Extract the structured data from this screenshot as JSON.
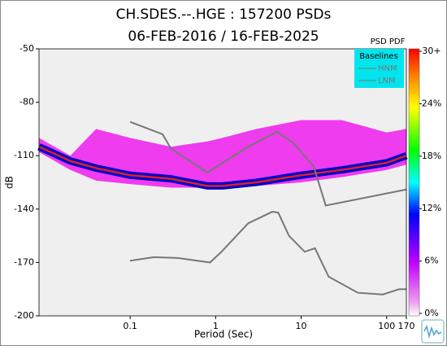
{
  "chart_data": {
    "type": "psd_pdf",
    "title": "CH.SDES.--.HGE : 157200 PSDs",
    "subtitle": "06-FEB-2016 / 16-FEB-2025",
    "x_label": "Period (Sec)",
    "y_label": "dB",
    "xscale": "log",
    "xlim": [
      0.0086,
      170
    ],
    "ylim": [
      -200,
      -50
    ],
    "xticks": [
      0.1,
      1,
      10,
      100,
      170
    ],
    "yticks": [
      -50,
      -80,
      -110,
      -140,
      -170,
      -200
    ],
    "colorbar_title": "PSD PDF",
    "clim": [
      0,
      30
    ],
    "cticks": [
      {
        "value": 0,
        "label": "0%"
      },
      {
        "value": 6,
        "label": "6%"
      },
      {
        "value": 12,
        "label": "12%"
      },
      {
        "value": 18,
        "label": "18%"
      },
      {
        "value": 24,
        "label": "24%"
      },
      {
        "value": 30,
        "label": "30+"
      }
    ],
    "legend_title": "Baselines",
    "legend_position": "upper right",
    "series": [
      {
        "name": "HNM",
        "color": "#777777",
        "x": [
          0.1,
          0.24,
          0.3,
          0.8,
          2.4,
          5.2,
          8,
          14,
          19.4,
          170
        ],
        "values": [
          -91,
          -98,
          -106,
          -119.5,
          -105,
          -96.6,
          -102.6,
          -116,
          -138,
          -129
        ]
      },
      {
        "name": "LNM",
        "color": "#777777",
        "x": [
          0.1,
          0.19,
          0.36,
          0.86,
          1.17,
          2.4,
          4.6,
          5.4,
          7.2,
          11,
          14.5,
          21,
          46,
          90,
          140,
          170
        ],
        "values": [
          -169,
          -167,
          -167.5,
          -170,
          -164,
          -148,
          -141.5,
          -142,
          -155,
          -164,
          -162,
          -178,
          -187,
          -188,
          -185,
          -185
        ]
      }
    ],
    "pdf_band": {
      "color": "#ee00ee",
      "ridge_color": "#e02020",
      "x": [
        0.0086,
        0.02,
        0.04,
        0.1,
        0.3,
        0.8,
        1.2,
        3,
        10,
        30,
        100,
        170
      ],
      "upper": [
        -100,
        -110,
        -95,
        -100,
        -105,
        -102,
        -100,
        -95,
        -90,
        -90,
        -97,
        -95
      ],
      "lower": [
        -108,
        -118,
        -124,
        -126,
        -128,
        -128,
        -128,
        -127,
        -125,
        -122,
        -118,
        -115
      ],
      "ridge": [
        -105,
        -113,
        -117,
        -121,
        -123,
        -127,
        -127,
        -125,
        -121,
        -118,
        -114,
        -110
      ]
    }
  }
}
